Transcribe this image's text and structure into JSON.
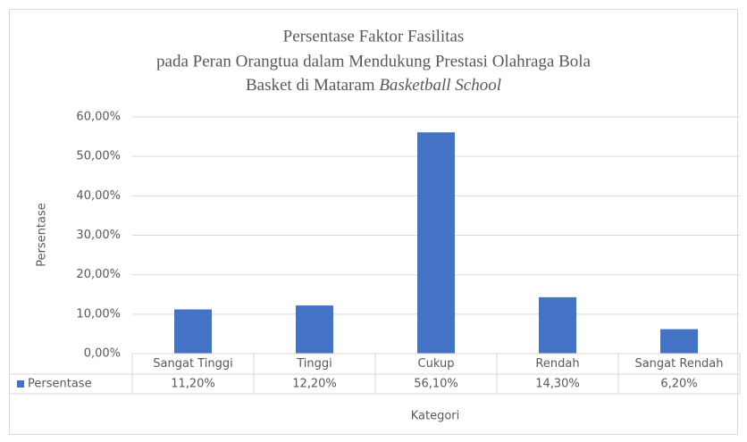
{
  "chart_data": {
    "type": "bar",
    "title_lines": [
      "Persentase Faktor Fasilitas",
      "pada Peran Orangtua dalam Mendukung Prestasi Olahraga Bola",
      [
        "Basket di Mataram",
        "Basketball School"
      ]
    ],
    "y_label": "Persentase",
    "x_label": "Kategori",
    "categories": [
      "Sangat Tinggi",
      "Tinggi",
      "Cukup",
      "Rendah",
      "Sangat Rendah"
    ],
    "series": [
      {
        "name": "Persentase",
        "color": "#4472c4",
        "values": [
          11.2,
          12.2,
          56.1,
          14.3,
          6.2
        ],
        "value_labels": [
          "11,20%",
          "12,20%",
          "56,10%",
          "14,30%",
          "6,20%"
        ]
      }
    ],
    "ylim": [
      0,
      60
    ],
    "yticks": [
      {
        "value": 0,
        "label": "0,00%"
      },
      {
        "value": 10,
        "label": "10,00%"
      },
      {
        "value": 20,
        "label": "20,00%"
      },
      {
        "value": 30,
        "label": "30,00%"
      },
      {
        "value": 40,
        "label": "40,00%"
      },
      {
        "value": 50,
        "label": "50,00%"
      },
      {
        "value": 60,
        "label": "60,00%"
      }
    ],
    "grid": true,
    "data_table": true
  }
}
